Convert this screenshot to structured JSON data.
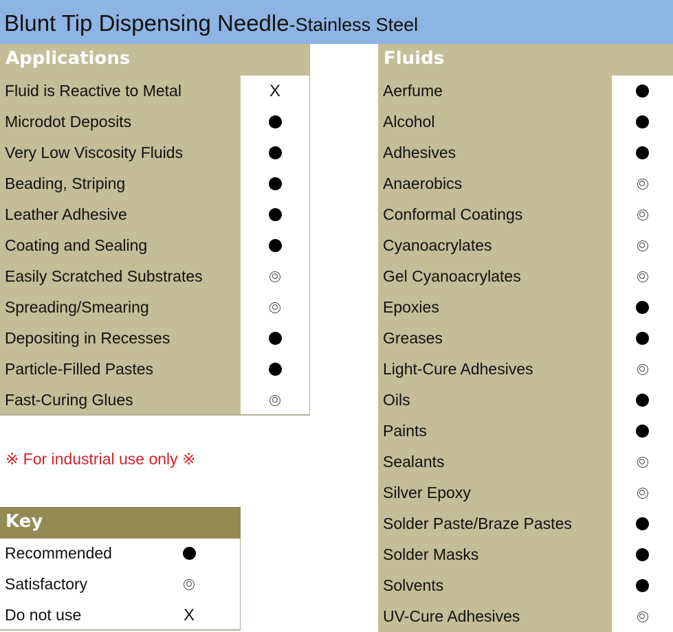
{
  "title": {
    "main": "Blunt Tip Dispensing Needle",
    "sub": "-Stainless Steel"
  },
  "colors": {
    "title_bg": "#8db4e2",
    "header_tan": "#c4bd97",
    "key_header": "#948a54",
    "note": "#d2232a"
  },
  "symbols": {
    "recommended": "filled-circle",
    "satisfactory": "double-circle",
    "do_not_use": "X"
  },
  "applications": {
    "header": "Applications",
    "items": [
      {
        "label": "Fluid is Reactive to Metal",
        "rating": "do_not_use",
        "text": "X"
      },
      {
        "label": "Microdot Deposits",
        "rating": "recommended"
      },
      {
        "label": "Very Low Viscosity Fluids",
        "rating": "recommended"
      },
      {
        "label": "Beading, Striping",
        "rating": "recommended"
      },
      {
        "label": "Leather Adhesive",
        "rating": "recommended"
      },
      {
        "label": "Coating and Sealing",
        "rating": "recommended"
      },
      {
        "label": "Easily Scratched Substrates",
        "rating": "satisfactory"
      },
      {
        "label": "Spreading/Smearing",
        "rating": "satisfactory"
      },
      {
        "label": "Depositing in Recesses",
        "rating": "recommended"
      },
      {
        "label": "Particle-Filled Pastes",
        "rating": "recommended"
      },
      {
        "label": "Fast-Curing Glues",
        "rating": "satisfactory"
      }
    ]
  },
  "fluids": {
    "header": "Fluids",
    "items": [
      {
        "label": "Aerfume",
        "rating": "recommended"
      },
      {
        "label": "Alcohol",
        "rating": "recommended"
      },
      {
        "label": "Adhesives",
        "rating": "recommended"
      },
      {
        "label": "Anaerobics",
        "rating": "satisfactory"
      },
      {
        "label": "Conformal Coatings",
        "rating": "satisfactory"
      },
      {
        "label": "Cyanoacrylates",
        "rating": "satisfactory"
      },
      {
        "label": "Gel Cyanoacrylates",
        "rating": "satisfactory"
      },
      {
        "label": "Epoxies",
        "rating": "recommended"
      },
      {
        "label": "Greases",
        "rating": "recommended"
      },
      {
        "label": "Light-Cure Adhesives",
        "rating": "satisfactory"
      },
      {
        "label": "Oils",
        "rating": "recommended"
      },
      {
        "label": "Paints",
        "rating": "recommended"
      },
      {
        "label": "Sealants",
        "rating": "satisfactory"
      },
      {
        "label": "Silver Epoxy",
        "rating": "satisfactory"
      },
      {
        "label": "Solder Paste/Braze Pastes",
        "rating": "recommended"
      },
      {
        "label": "Solder Masks",
        "rating": "recommended"
      },
      {
        "label": "Solvents",
        "rating": "recommended"
      },
      {
        "label": "UV-Cure Adhesives",
        "rating": "satisfactory"
      }
    ]
  },
  "note": "※ For industrial use only ※",
  "key": {
    "header": "Key",
    "items": [
      {
        "label": "Recommended",
        "rating": "recommended"
      },
      {
        "label": "Satisfactory",
        "rating": "satisfactory"
      },
      {
        "label": "Do not use",
        "rating": "do_not_use",
        "text": "X"
      }
    ]
  }
}
